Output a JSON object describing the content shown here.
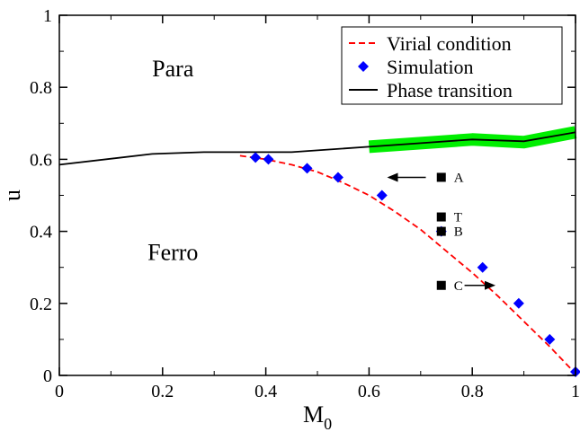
{
  "chart_data": {
    "type": "line",
    "xlabel": "M",
    "xlabel_subscript": "0",
    "ylabel": "u",
    "xlim": [
      0,
      1
    ],
    "ylim": [
      0,
      1
    ],
    "x_ticks": [
      "0",
      "0.2",
      "0.4",
      "0.6",
      "0.8",
      "1"
    ],
    "y_ticks": [
      "0",
      "0.2",
      "0.4",
      "0.6",
      "0.8",
      "1"
    ],
    "grid": false,
    "legend_position": "top-right",
    "legend": [
      "Virial condition",
      "Simulation",
      "Phase transition"
    ],
    "region_labels": [
      {
        "text": "Para",
        "x": 0.22,
        "y": 0.83
      },
      {
        "text": "Ferro",
        "x": 0.22,
        "y": 0.32
      }
    ],
    "series": [
      {
        "name": "Virial condition",
        "style": "dashed",
        "color": "#ff0000",
        "x": [
          0.35,
          0.4,
          0.45,
          0.5,
          0.55,
          0.6,
          0.65,
          0.7,
          0.75,
          0.8,
          0.85,
          0.9,
          0.95,
          1.0
        ],
        "y": [
          0.61,
          0.6,
          0.585,
          0.565,
          0.535,
          0.5,
          0.455,
          0.405,
          0.345,
          0.285,
          0.22,
          0.15,
          0.08,
          0.005
        ]
      },
      {
        "name": "Simulation",
        "style": "markers",
        "marker": "diamond",
        "color": "#0000ff",
        "x": [
          0.38,
          0.405,
          0.48,
          0.54,
          0.625,
          0.74,
          0.82,
          0.89,
          0.95,
          1.0
        ],
        "y": [
          0.605,
          0.6,
          0.575,
          0.55,
          0.5,
          0.4,
          0.3,
          0.2,
          0.1,
          0.01
        ]
      },
      {
        "name": "Phase transition",
        "style": "solid",
        "color": "#000000",
        "x": [
          0.0,
          0.18,
          0.28,
          0.36,
          0.45,
          0.6,
          0.7,
          0.8,
          0.9,
          1.0
        ],
        "y": [
          0.585,
          0.615,
          0.62,
          0.62,
          0.62,
          0.635,
          0.645,
          0.655,
          0.65,
          0.675
        ]
      }
    ],
    "phase_transition_band": {
      "color": "#00ee00",
      "x": [
        0.6,
        0.7,
        0.8,
        0.9,
        1.0
      ],
      "y": [
        0.635,
        0.645,
        0.655,
        0.648,
        0.675
      ]
    },
    "labeled_points": [
      {
        "label": "A",
        "x": 0.74,
        "y": 0.55
      },
      {
        "label": "T",
        "x": 0.74,
        "y": 0.44
      },
      {
        "label": "B",
        "x": 0.74,
        "y": 0.4
      },
      {
        "label": "C",
        "x": 0.74,
        "y": 0.25
      }
    ],
    "arrows": [
      {
        "from": [
          0.71,
          0.55
        ],
        "to": [
          0.635,
          0.55
        ]
      },
      {
        "from": [
          0.785,
          0.25
        ],
        "to": [
          0.845,
          0.25
        ]
      }
    ]
  }
}
